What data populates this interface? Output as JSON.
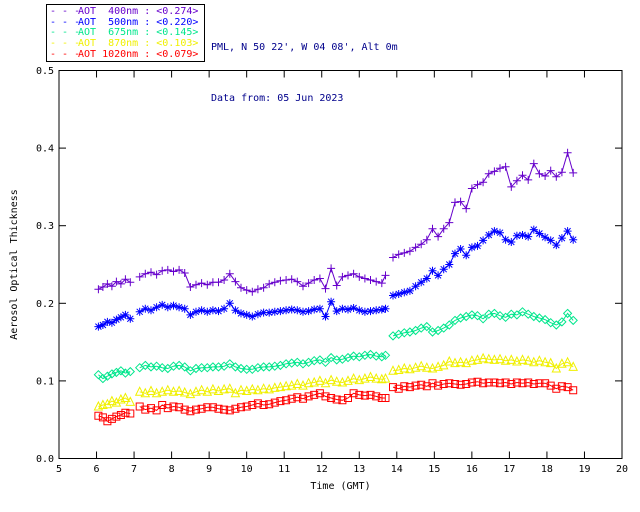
{
  "header": {
    "line1": "PML, N 50 22', W 04 08', Alt 0m",
    "line2": "Data from: 05 Jun 2023",
    "color": "#00008B"
  },
  "legend": {
    "dash": "- - -",
    "items": [
      {
        "label": "AOT  400nm : <0.274>",
        "color": "#6600CC"
      },
      {
        "label": "AOT  500nm : <0.220>",
        "color": "#0000FF"
      },
      {
        "label": "AOT  675nm : <0.145>",
        "color": "#00E68C"
      },
      {
        "label": "AOT  870nm : <0.103>",
        "color": "#F0F000"
      },
      {
        "label": "AOT 1020nm : <0.079>",
        "color": "#FF0000"
      }
    ]
  },
  "chart_data": {
    "type": "line",
    "title": "",
    "xlabel": "Time (GMT)",
    "ylabel": "Aerosol Optical Thickness",
    "xlim": [
      5,
      20
    ],
    "ylim": [
      0.0,
      0.5
    ],
    "xticks": [
      5,
      6,
      7,
      8,
      9,
      10,
      11,
      12,
      13,
      14,
      15,
      16,
      17,
      18,
      19,
      20
    ],
    "yticks": [
      0.0,
      0.1,
      0.2,
      0.3,
      0.4,
      0.5
    ],
    "grid": false,
    "legend_position": "top-left",
    "axis_color": "#000000",
    "gap_threshold_hours": 0.18,
    "x": [
      6.05,
      6.17,
      6.29,
      6.41,
      6.53,
      6.65,
      6.77,
      6.9,
      7.15,
      7.3,
      7.45,
      7.6,
      7.75,
      7.9,
      8.05,
      8.2,
      8.35,
      8.5,
      8.65,
      8.8,
      8.95,
      9.1,
      9.25,
      9.4,
      9.55,
      9.7,
      9.85,
      10.0,
      10.15,
      10.3,
      10.45,
      10.6,
      10.75,
      10.9,
      11.05,
      11.2,
      11.35,
      11.5,
      11.65,
      11.8,
      11.95,
      12.1,
      12.25,
      12.4,
      12.55,
      12.7,
      12.85,
      13.0,
      13.15,
      13.3,
      13.45,
      13.6,
      13.7,
      13.9,
      14.05,
      14.2,
      14.35,
      14.5,
      14.65,
      14.8,
      14.95,
      15.1,
      15.25,
      15.4,
      15.55,
      15.7,
      15.85,
      16.0,
      16.15,
      16.3,
      16.45,
      16.6,
      16.75,
      16.9,
      17.05,
      17.2,
      17.35,
      17.5,
      17.65,
      17.8,
      17.95,
      18.1,
      18.25,
      18.4,
      18.55,
      18.7
    ],
    "series": [
      {
        "name": "AOT 400nm",
        "wavelength_nm": 400,
        "mean_label": "<0.274>",
        "color": "#6600CC",
        "marker": "plus",
        "values": [
          0.218,
          0.221,
          0.225,
          0.222,
          0.228,
          0.225,
          0.231,
          0.227,
          0.234,
          0.238,
          0.24,
          0.237,
          0.242,
          0.243,
          0.241,
          0.243,
          0.239,
          0.221,
          0.224,
          0.226,
          0.224,
          0.227,
          0.227,
          0.23,
          0.238,
          0.228,
          0.22,
          0.217,
          0.215,
          0.218,
          0.22,
          0.225,
          0.227,
          0.229,
          0.23,
          0.231,
          0.228,
          0.222,
          0.226,
          0.23,
          0.232,
          0.219,
          0.245,
          0.223,
          0.234,
          0.236,
          0.238,
          0.234,
          0.232,
          0.23,
          0.228,
          0.226,
          0.236,
          0.259,
          0.263,
          0.265,
          0.267,
          0.272,
          0.276,
          0.282,
          0.296,
          0.286,
          0.296,
          0.304,
          0.33,
          0.331,
          0.322,
          0.348,
          0.353,
          0.356,
          0.367,
          0.37,
          0.374,
          0.376,
          0.35,
          0.358,
          0.365,
          0.359,
          0.38,
          0.367,
          0.364,
          0.371,
          0.363,
          0.369,
          0.394,
          0.368
        ]
      },
      {
        "name": "AOT 500nm",
        "wavelength_nm": 500,
        "mean_label": "<0.220>",
        "color": "#0000FF",
        "marker": "asterisk",
        "values": [
          0.17,
          0.172,
          0.176,
          0.175,
          0.179,
          0.182,
          0.185,
          0.18,
          0.189,
          0.193,
          0.191,
          0.195,
          0.198,
          0.195,
          0.197,
          0.195,
          0.193,
          0.185,
          0.189,
          0.191,
          0.189,
          0.191,
          0.19,
          0.193,
          0.2,
          0.191,
          0.187,
          0.185,
          0.183,
          0.186,
          0.188,
          0.188,
          0.189,
          0.19,
          0.191,
          0.192,
          0.191,
          0.189,
          0.19,
          0.192,
          0.193,
          0.183,
          0.202,
          0.19,
          0.193,
          0.192,
          0.194,
          0.191,
          0.189,
          0.19,
          0.191,
          0.192,
          0.193,
          0.21,
          0.212,
          0.214,
          0.216,
          0.222,
          0.227,
          0.232,
          0.242,
          0.236,
          0.244,
          0.25,
          0.264,
          0.27,
          0.262,
          0.272,
          0.274,
          0.281,
          0.288,
          0.293,
          0.291,
          0.282,
          0.279,
          0.287,
          0.288,
          0.286,
          0.295,
          0.29,
          0.285,
          0.281,
          0.275,
          0.284,
          0.293,
          0.282
        ]
      },
      {
        "name": "AOT 675nm",
        "wavelength_nm": 675,
        "mean_label": "<0.145>",
        "color": "#00E68C",
        "marker": "diamond",
        "values": [
          0.108,
          0.103,
          0.106,
          0.109,
          0.111,
          0.113,
          0.11,
          0.112,
          0.117,
          0.12,
          0.118,
          0.119,
          0.117,
          0.116,
          0.119,
          0.12,
          0.118,
          0.113,
          0.116,
          0.117,
          0.117,
          0.118,
          0.118,
          0.119,
          0.122,
          0.118,
          0.116,
          0.115,
          0.115,
          0.117,
          0.118,
          0.118,
          0.119,
          0.12,
          0.122,
          0.123,
          0.124,
          0.122,
          0.124,
          0.126,
          0.127,
          0.124,
          0.13,
          0.127,
          0.128,
          0.13,
          0.132,
          0.131,
          0.133,
          0.134,
          0.132,
          0.131,
          0.133,
          0.158,
          0.16,
          0.162,
          0.163,
          0.165,
          0.168,
          0.17,
          0.163,
          0.165,
          0.168,
          0.172,
          0.178,
          0.181,
          0.183,
          0.185,
          0.184,
          0.18,
          0.186,
          0.187,
          0.184,
          0.182,
          0.186,
          0.185,
          0.189,
          0.186,
          0.183,
          0.181,
          0.179,
          0.175,
          0.172,
          0.176,
          0.187,
          0.178
        ]
      },
      {
        "name": "AOT 870nm",
        "wavelength_nm": 870,
        "mean_label": "<0.103>",
        "color": "#F0F000",
        "marker": "triangle",
        "values": [
          0.067,
          0.069,
          0.07,
          0.074,
          0.072,
          0.076,
          0.078,
          0.073,
          0.086,
          0.084,
          0.087,
          0.084,
          0.086,
          0.088,
          0.086,
          0.087,
          0.085,
          0.083,
          0.086,
          0.088,
          0.086,
          0.089,
          0.087,
          0.089,
          0.09,
          0.084,
          0.088,
          0.087,
          0.089,
          0.088,
          0.09,
          0.089,
          0.091,
          0.092,
          0.093,
          0.094,
          0.096,
          0.094,
          0.097,
          0.098,
          0.1,
          0.097,
          0.101,
          0.099,
          0.098,
          0.1,
          0.103,
          0.101,
          0.103,
          0.105,
          0.103,
          0.102,
          0.103,
          0.113,
          0.114,
          0.116,
          0.115,
          0.117,
          0.119,
          0.117,
          0.116,
          0.118,
          0.12,
          0.125,
          0.123,
          0.124,
          0.123,
          0.126,
          0.127,
          0.129,
          0.128,
          0.127,
          0.128,
          0.126,
          0.127,
          0.125,
          0.127,
          0.126,
          0.124,
          0.126,
          0.124,
          0.123,
          0.116,
          0.122,
          0.124,
          0.118
        ]
      },
      {
        "name": "AOT 1020nm",
        "wavelength_nm": 1020,
        "mean_label": "<0.079>",
        "color": "#FF0000",
        "marker": "square",
        "values": [
          0.055,
          0.053,
          0.048,
          0.051,
          0.054,
          0.056,
          0.059,
          0.058,
          0.067,
          0.063,
          0.065,
          0.062,
          0.069,
          0.065,
          0.067,
          0.066,
          0.063,
          0.061,
          0.063,
          0.064,
          0.066,
          0.066,
          0.064,
          0.063,
          0.062,
          0.064,
          0.066,
          0.067,
          0.069,
          0.071,
          0.069,
          0.07,
          0.072,
          0.074,
          0.075,
          0.077,
          0.079,
          0.077,
          0.08,
          0.082,
          0.084,
          0.08,
          0.078,
          0.076,
          0.075,
          0.078,
          0.084,
          0.082,
          0.081,
          0.082,
          0.08,
          0.078,
          0.078,
          0.092,
          0.09,
          0.093,
          0.092,
          0.094,
          0.095,
          0.093,
          0.097,
          0.094,
          0.096,
          0.097,
          0.096,
          0.095,
          0.096,
          0.098,
          0.099,
          0.097,
          0.098,
          0.098,
          0.097,
          0.098,
          0.096,
          0.098,
          0.097,
          0.098,
          0.096,
          0.097,
          0.097,
          0.094,
          0.09,
          0.093,
          0.092,
          0.088
        ]
      }
    ]
  }
}
